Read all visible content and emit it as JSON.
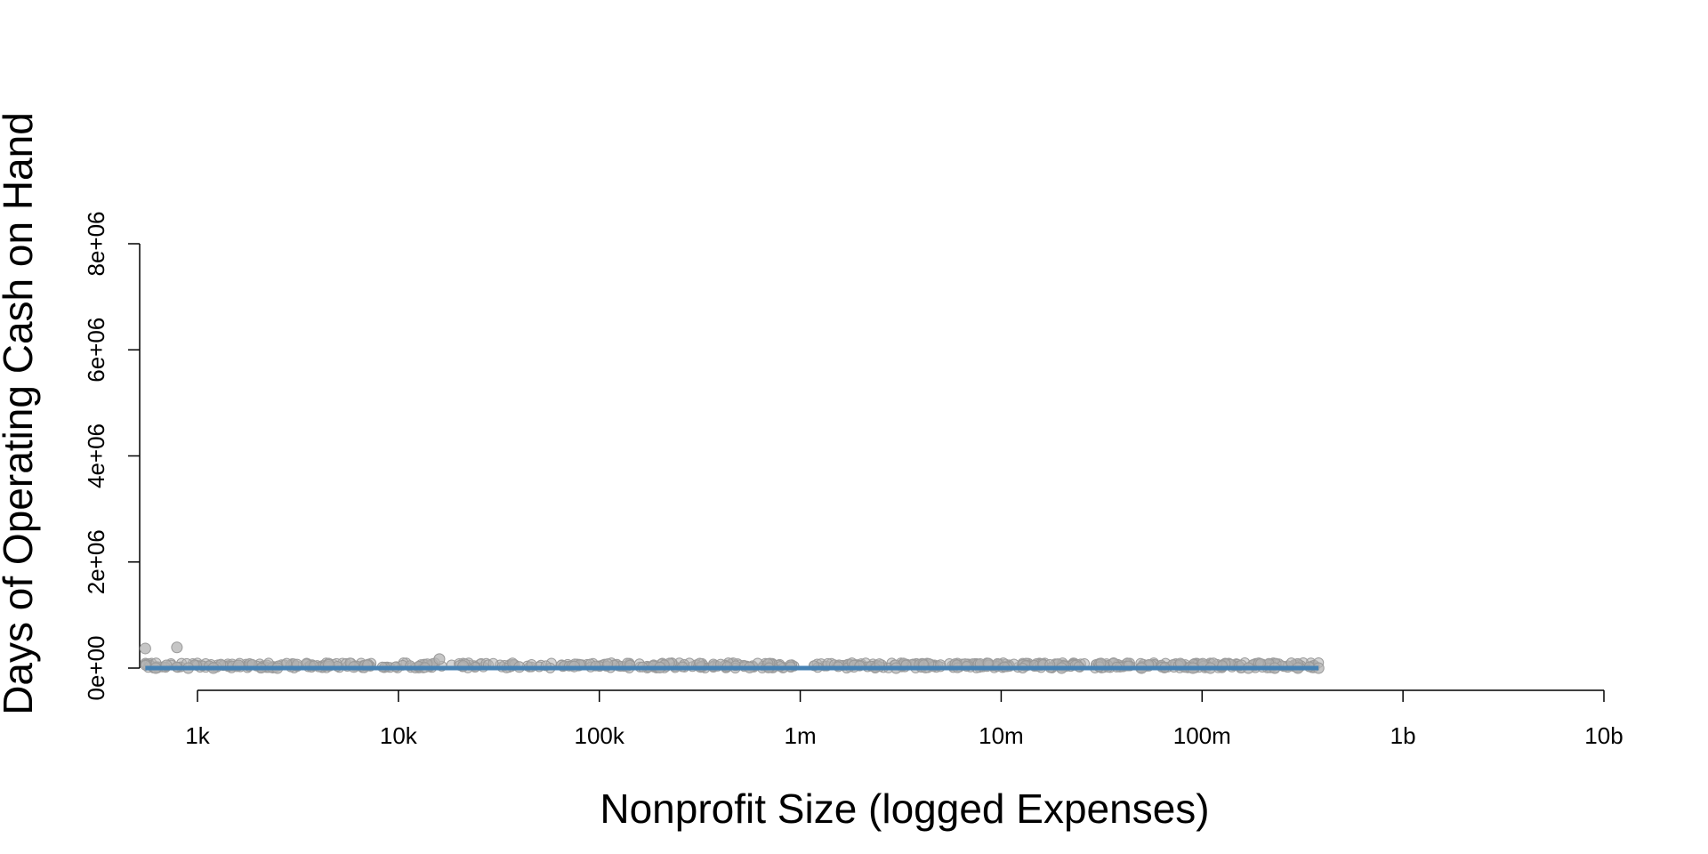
{
  "chart_data": {
    "type": "scatter",
    "title": "",
    "xlabel": "Nonprofit Size (logged Expenses)",
    "ylabel": "Days of Operating Cash on Hand",
    "x_scale": "log10",
    "x_ticks": [
      {
        "value": 1000,
        "label": "1k"
      },
      {
        "value": 10000,
        "label": "10k"
      },
      {
        "value": 100000,
        "label": "100k"
      },
      {
        "value": 1000000,
        "label": "1m"
      },
      {
        "value": 10000000,
        "label": "10m"
      },
      {
        "value": 100000000,
        "label": "100m"
      },
      {
        "value": 1000000000,
        "label": "1b"
      },
      {
        "value": 10000000000,
        "label": "10b"
      }
    ],
    "y_ticks": [
      {
        "value": 0,
        "label": "0e+00"
      },
      {
        "value": 2000000,
        "label": "2e+06"
      },
      {
        "value": 4000000,
        "label": "4e+06"
      },
      {
        "value": 6000000,
        "label": "6e+06"
      },
      {
        "value": 8000000,
        "label": "8e+06"
      }
    ],
    "xlim": [
      525,
      10000000000
    ],
    "ylim": [
      0,
      8000000
    ],
    "grid": false,
    "colors": {
      "points": "#b3b3b3",
      "point_outline": "#999999",
      "trend_line": "#4682b4"
    },
    "series": [
      {
        "kind": "points",
        "points": [
          {
            "x": 550,
            "y": 370000
          },
          {
            "x": 790,
            "y": 390000
          },
          {
            "x": 16000,
            "y": 170000
          },
          {
            "x": 4500,
            "y": 60000
          },
          {
            "x": 21000,
            "y": 40000
          },
          {
            "x": 75000,
            "y": 30000
          },
          {
            "x": 1600,
            "y": 50000
          },
          {
            "x": 700,
            "y": 50000
          },
          {
            "x": 620,
            "y": 0
          },
          {
            "x": 900,
            "y": 0
          },
          {
            "x": 1200,
            "y": 0
          },
          {
            "x": 2500,
            "y": 0
          },
          {
            "x": 6000,
            "y": 20000
          },
          {
            "x": 40000,
            "y": 20000
          },
          {
            "x": 200000,
            "y": 10000
          },
          {
            "x": 560000,
            "y": 10000
          },
          {
            "x": 3000000,
            "y": 0
          },
          {
            "x": 20000000,
            "y": 0
          },
          {
            "x": 50000000,
            "y": 0
          },
          {
            "x": 90000000,
            "y": 0
          },
          {
            "x": 110000000,
            "y": 0
          },
          {
            "x": 170000000,
            "y": 0
          },
          {
            "x": 230000000,
            "y": 0
          },
          {
            "x": 300000000,
            "y": 0
          },
          {
            "x": 380000000,
            "y": 0
          }
        ]
      },
      {
        "kind": "trend_line",
        "points": [
          {
            "x": 550,
            "y": 0
          },
          {
            "x": 380000000,
            "y": 0
          }
        ]
      }
    ]
  }
}
